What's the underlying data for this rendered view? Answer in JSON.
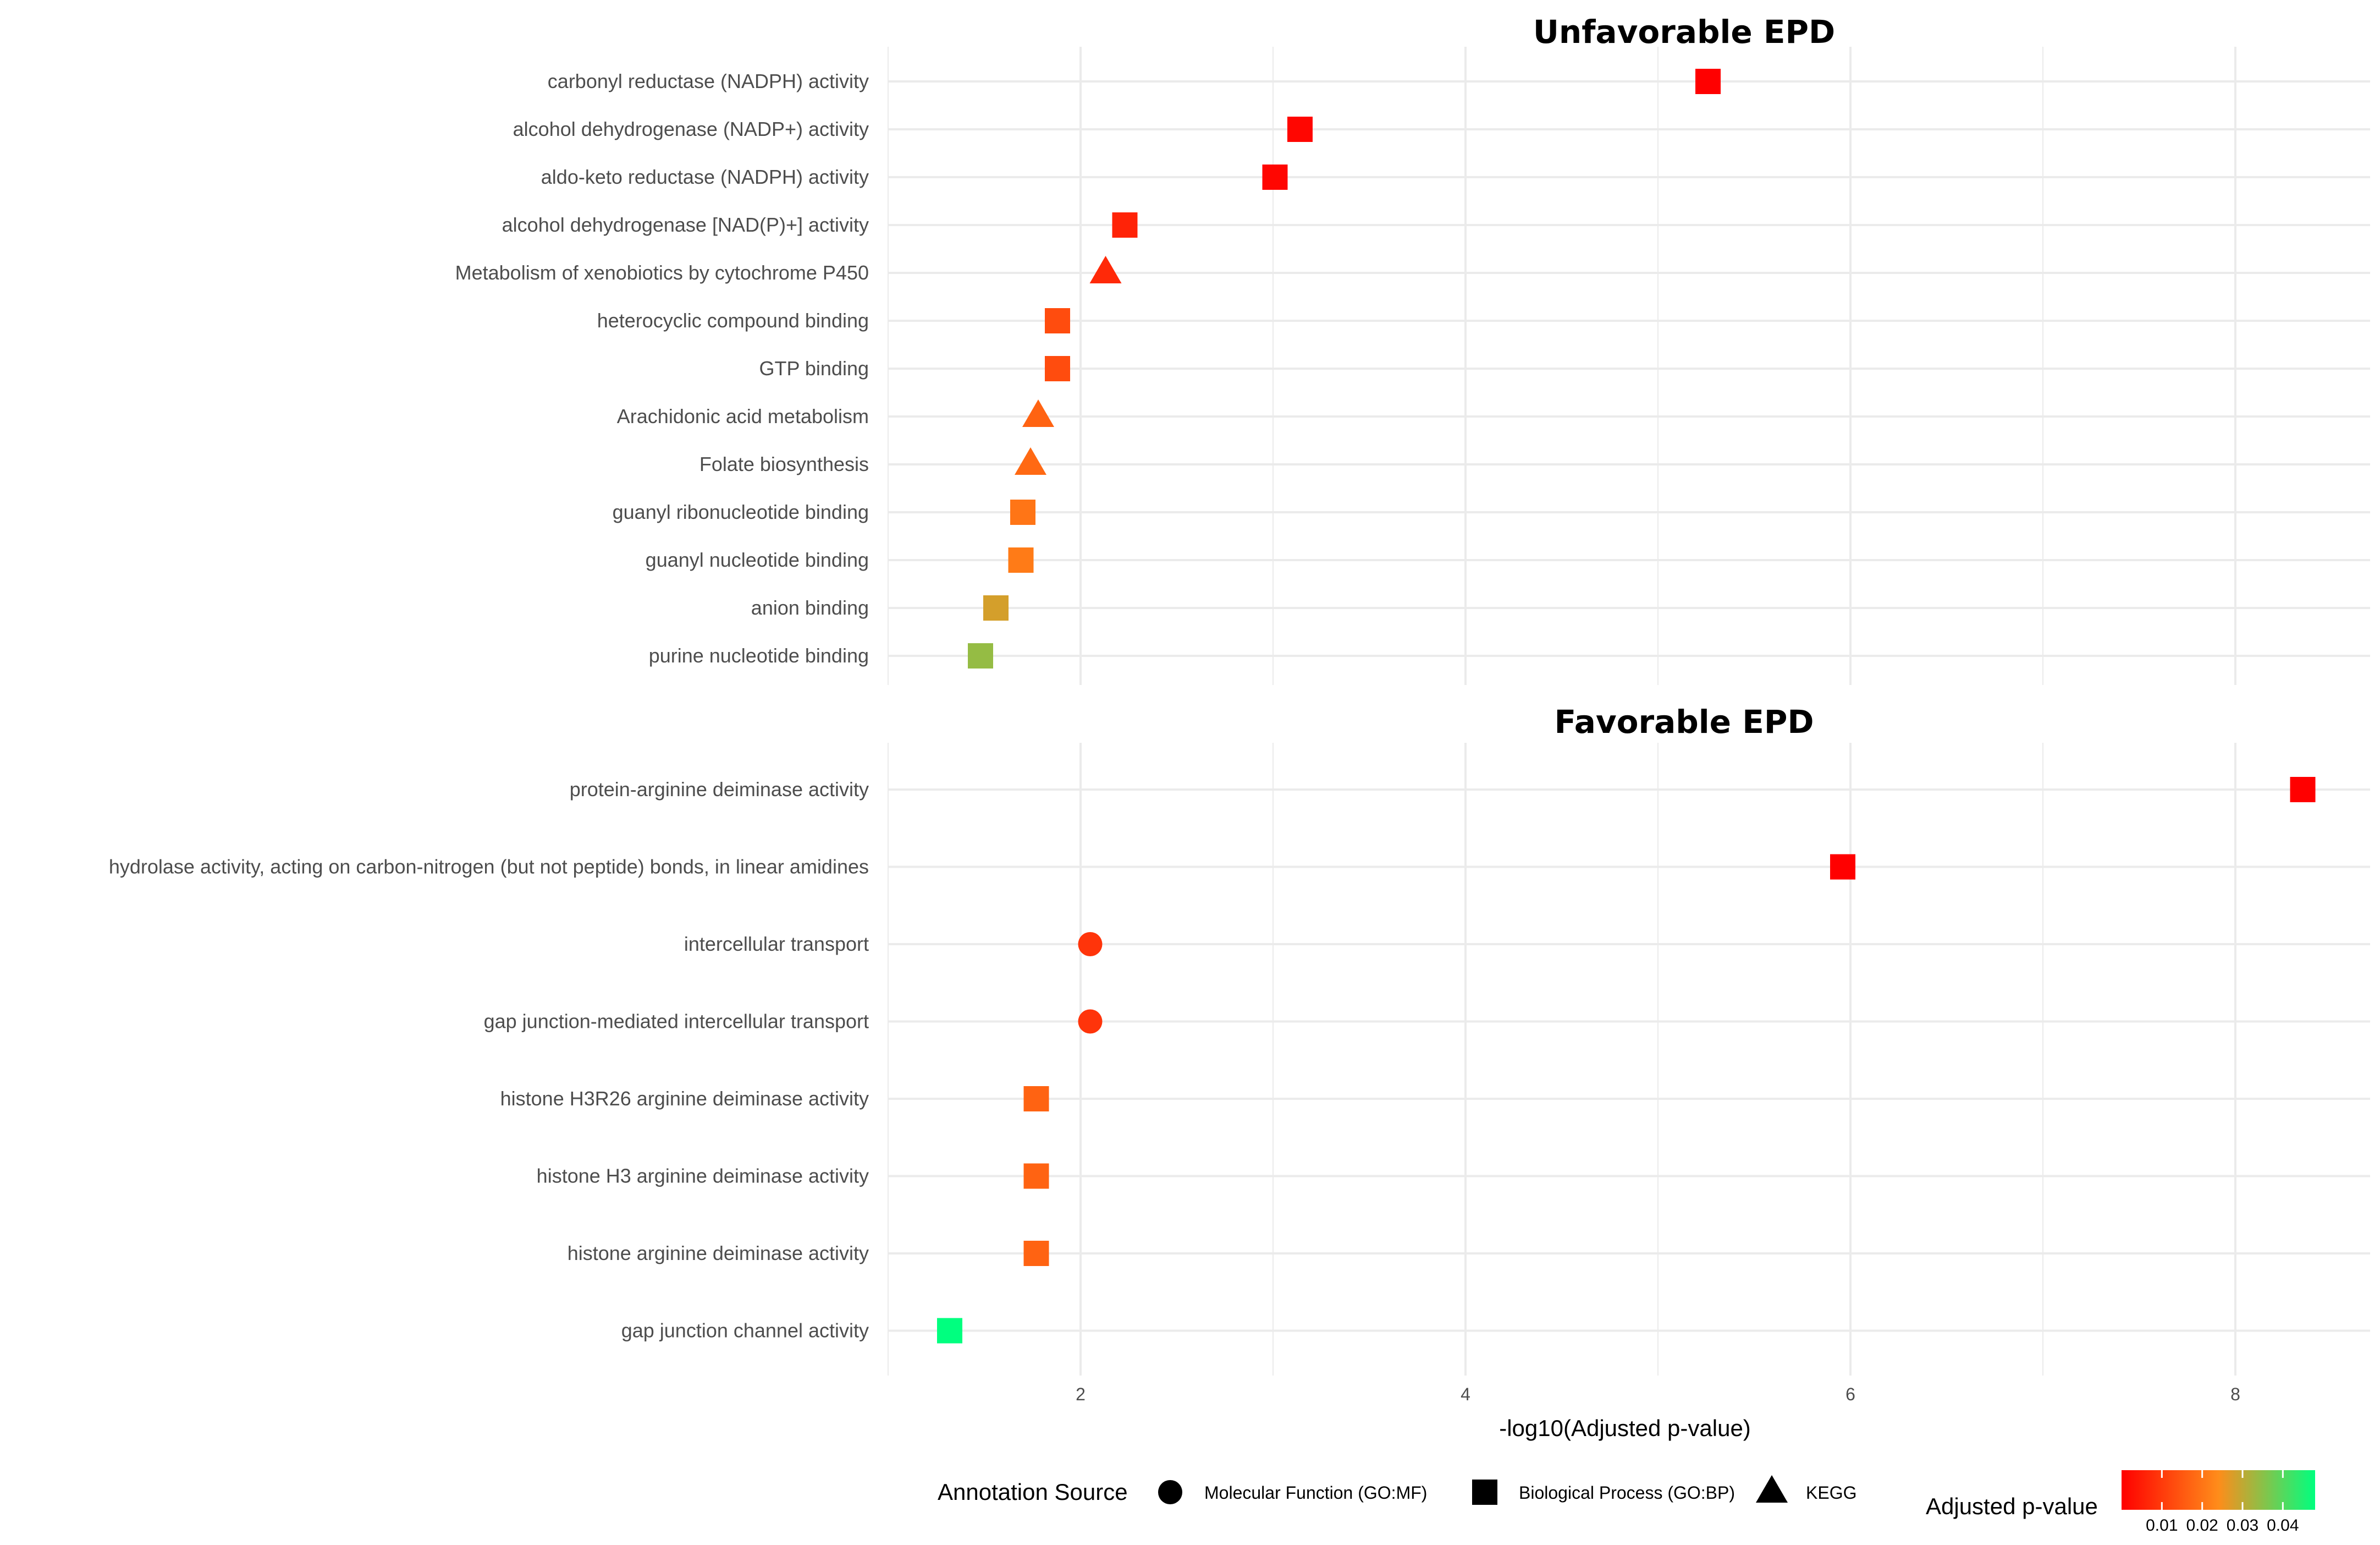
{
  "chart_data": [
    {
      "type": "scatter",
      "title": "Unfavorable EPD",
      "xlabel": "-log10(Adjusted p-value)",
      "ylabel": "",
      "xlim": [
        1.0,
        8.7
      ],
      "x_ticks": [
        2,
        4,
        6,
        8
      ],
      "points": [
        {
          "label": "carbonyl reductase (NADPH) activity",
          "x": 5.26,
          "p": 0.0,
          "shape": "square"
        },
        {
          "label": "alcohol dehydrogenase (NADP+) activity",
          "x": 3.14,
          "p": 0.001,
          "shape": "square"
        },
        {
          "label": "aldo-keto reductase (NADPH) activity",
          "x": 3.01,
          "p": 0.001,
          "shape": "square"
        },
        {
          "label": "alcohol dehydrogenase [NAD(P)+] activity",
          "x": 2.23,
          "p": 0.006,
          "shape": "square"
        },
        {
          "label": "Metabolism of xenobiotics by cytochrome P450",
          "x": 2.13,
          "p": 0.007,
          "shape": "triangle"
        },
        {
          "label": "heterocyclic compound binding",
          "x": 1.88,
          "p": 0.013,
          "shape": "square"
        },
        {
          "label": "GTP binding",
          "x": 1.88,
          "p": 0.013,
          "shape": "square"
        },
        {
          "label": "Arachidonic acid metabolism",
          "x": 1.78,
          "p": 0.017,
          "shape": "triangle"
        },
        {
          "label": "Folate biosynthesis",
          "x": 1.74,
          "p": 0.018,
          "shape": "triangle"
        },
        {
          "label": "guanyl ribonucleotide binding",
          "x": 1.7,
          "p": 0.02,
          "shape": "square"
        },
        {
          "label": "guanyl nucleotide binding",
          "x": 1.69,
          "p": 0.021,
          "shape": "square"
        },
        {
          "label": "anion binding",
          "x": 1.56,
          "p": 0.028,
          "shape": "square"
        },
        {
          "label": "purine nucleotide binding",
          "x": 1.48,
          "p": 0.034,
          "shape": "square"
        }
      ]
    },
    {
      "type": "scatter",
      "title": "Favorable EPD",
      "xlabel": "-log10(Adjusted p-value)",
      "ylabel": "",
      "xlim": [
        1.0,
        8.7
      ],
      "x_ticks": [
        2,
        4,
        6,
        8
      ],
      "x_tick_labels": [
        "2",
        "4",
        "6",
        "8"
      ],
      "points": [
        {
          "label": "protein-arginine deiminase activity",
          "x": 8.35,
          "p": 0.0,
          "shape": "square"
        },
        {
          "label": "hydrolase activity, acting on carbon-nitrogen (but not peptide) bonds, in linear amidines",
          "x": 5.96,
          "p": 0.0,
          "shape": "square"
        },
        {
          "label": "intercellular transport",
          "x": 2.05,
          "p": 0.009,
          "shape": "circle"
        },
        {
          "label": "gap junction-mediated intercellular transport",
          "x": 2.05,
          "p": 0.009,
          "shape": "circle"
        },
        {
          "label": "histone H3R26 arginine deiminase activity",
          "x": 1.77,
          "p": 0.017,
          "shape": "square"
        },
        {
          "label": "histone H3 arginine deiminase activity",
          "x": 1.77,
          "p": 0.017,
          "shape": "square"
        },
        {
          "label": "histone arginine deiminase activity",
          "x": 1.77,
          "p": 0.017,
          "shape": "square"
        },
        {
          "label": "gap junction channel activity",
          "x": 1.32,
          "p": 0.048,
          "shape": "square"
        }
      ]
    }
  ],
  "legend": {
    "shape_title": "Annotation Source",
    "items": [
      {
        "label": "Molecular Function (GO:MF)",
        "shape": "circle"
      },
      {
        "label": "Biological Process (GO:BP)",
        "shape": "square"
      },
      {
        "label": "KEGG",
        "shape": "triangle"
      }
    ],
    "color_title": "Adjusted p-value",
    "color_range": [
      0.0,
      0.048
    ],
    "color_ticks": [
      0.01,
      0.02,
      0.03,
      0.04
    ],
    "color_tick_labels": [
      "0.01",
      "0.02",
      "0.03",
      "0.04"
    ],
    "color_stops": [
      "#ff0000",
      "#ff8c1a",
      "#00ff7f"
    ]
  },
  "colors": {
    "grid": "#ebebeb",
    "marker_text": "#000000"
  }
}
